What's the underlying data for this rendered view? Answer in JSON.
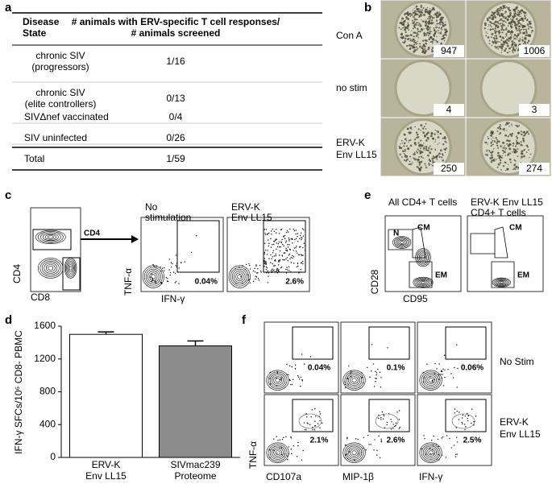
{
  "panel_labels": [
    "a",
    "b",
    "c",
    "d",
    "e",
    "f"
  ],
  "table": {
    "header": [
      [
        "Disease",
        "State"
      ],
      [
        "# animals with ERV-specific T cell responses/",
        "# animals screened"
      ]
    ],
    "rows": [
      [
        [
          "chronic SIV",
          "(progressors)"
        ],
        "1/16"
      ],
      [
        [
          "chronic SIV",
          "(elite controllers)"
        ],
        "0/13"
      ],
      [
        [
          "SIVΔnef vaccinated"
        ],
        "0/4"
      ],
      [
        [
          "SIV uninfected"
        ],
        "0/26"
      ],
      [
        [
          "Total"
        ],
        "1/59"
      ]
    ]
  },
  "wells": {
    "row_labels": [
      [
        "Con A"
      ],
      [
        "no stim"
      ],
      [
        "ERV-K",
        "Env LL15"
      ]
    ],
    "counts": [
      [
        947,
        1006
      ],
      [
        4,
        3
      ],
      [
        250,
        274
      ]
    ]
  },
  "panel_c": {
    "y_label": "CD4",
    "x_label": "CD8",
    "gate_label": "CD4",
    "plots": [
      {
        "title": [
          "No",
          "stimulation"
        ],
        "percent": "0.04%"
      },
      {
        "title": [
          "ERV-K",
          "Env LL15"
        ],
        "percent": "2.6%"
      }
    ],
    "y_label_2": "TNF-α",
    "x_label_2": "IFN-γ"
  },
  "panel_e": {
    "plots": [
      {
        "title": [
          "All CD4+ T cells"
        ],
        "gates": [
          "N",
          "CM",
          "EM"
        ]
      },
      {
        "title": [
          "ERV-K Env LL15",
          "CD4+ T cells"
        ],
        "gates": [
          "CM",
          "EM"
        ]
      }
    ],
    "y_label": "CD28",
    "x_label": "CD95"
  },
  "panel_f": {
    "y_label": "TNF-α",
    "x_labels": [
      "CD107a",
      "MIP-1β",
      "IFN-γ"
    ],
    "row_labels": [
      [
        "No Stim"
      ],
      [
        "ERV-K",
        "Env LL15"
      ]
    ],
    "percents": [
      [
        "0.04%",
        "0.1%",
        "0.06%"
      ],
      [
        "2.1%",
        "2.6%",
        "2.5%"
      ]
    ]
  },
  "chart_data": {
    "type": "bar",
    "y_label": "IFN-γ SFCs/10⁶ CD8- PBMC",
    "categories": [
      [
        "ERV-K",
        "Env LL15"
      ],
      [
        "SIVmac239",
        "Proteome"
      ]
    ],
    "values": [
      1500,
      1360
    ],
    "errors": [
      30,
      60
    ],
    "colors": [
      "#ffffff",
      "#8c8c8c"
    ],
    "ylim": [
      0,
      1600
    ],
    "yticks": [
      0,
      400,
      800,
      1200,
      1600
    ]
  }
}
